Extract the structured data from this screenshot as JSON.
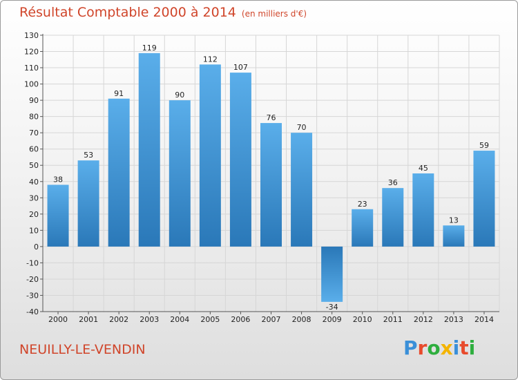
{
  "header": {
    "title": "Résultat Comptable 2000 à 2014",
    "unit": "(en milliers d'€)"
  },
  "footer": {
    "town": "NEUILLY-LE-VENDIN",
    "logo": [
      "P",
      "r",
      "o",
      "x",
      "i",
      "t",
      "i"
    ]
  },
  "colors": {
    "title": "#d0452a",
    "bar_light": "#5aaeea",
    "bar_dark": "#2a78b8",
    "logo": [
      "#3a8fd8",
      "#e84a2c",
      "#2eae3e",
      "#f4b400",
      "#3a8fd8",
      "#e84a2c",
      "#2eae3e"
    ]
  },
  "chart_data": {
    "type": "bar",
    "title": "Résultat Comptable 2000 à 2014",
    "ylabel": "",
    "xlabel": "",
    "ylim": [
      -40,
      130
    ],
    "ytick_step": 10,
    "grid": true,
    "categories": [
      "2000",
      "2001",
      "2002",
      "2003",
      "2004",
      "2005",
      "2006",
      "2007",
      "2008",
      "2009",
      "2010",
      "2011",
      "2012",
      "2013",
      "2014"
    ],
    "values": [
      38,
      53,
      91,
      119,
      90,
      112,
      107,
      76,
      70,
      -34,
      23,
      36,
      45,
      13,
      59
    ]
  }
}
